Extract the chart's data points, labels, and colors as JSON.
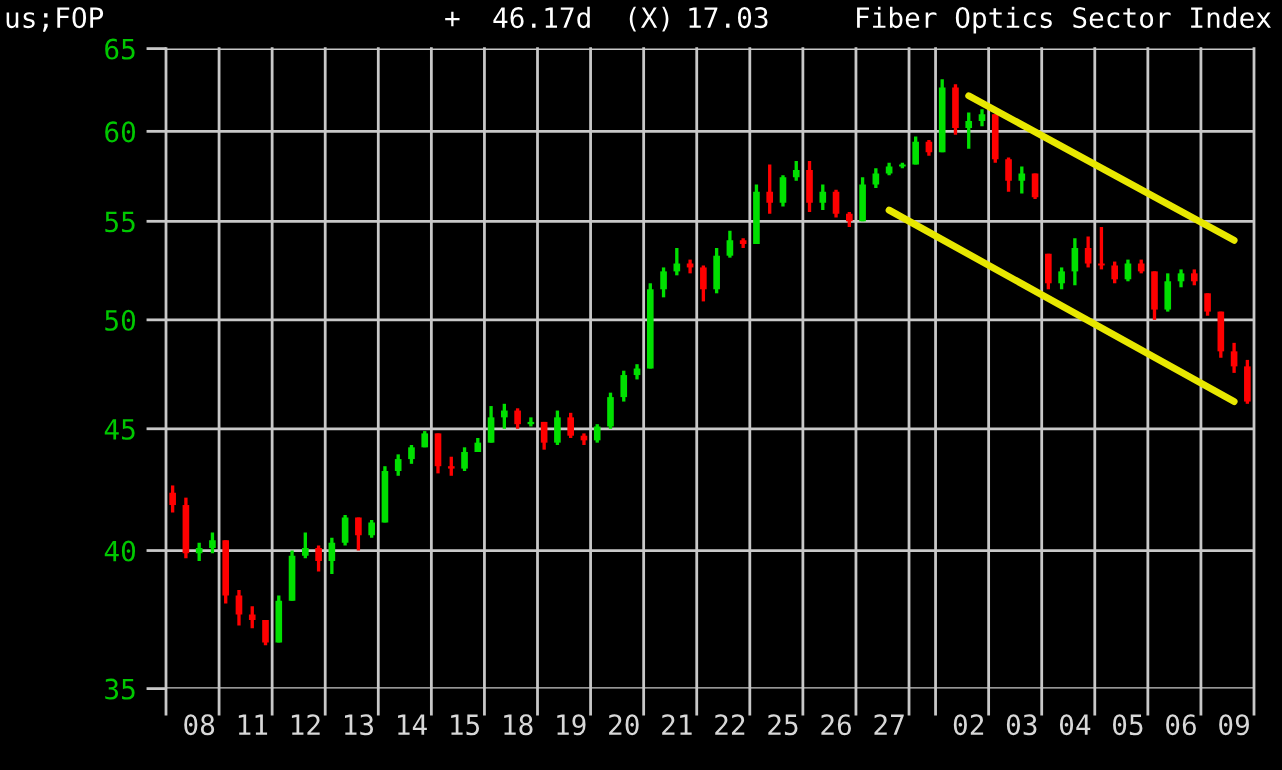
{
  "chart_data": {
    "type": "candlestick",
    "title": "Fiber Optics Sector Index",
    "annotations": [
      "us;FOP",
      "+",
      "46.17d",
      "(X)",
      "17.03"
    ],
    "categories": [
      null,
      null,
      "08",
      null,
      null,
      null,
      "11",
      null,
      null,
      null,
      "12",
      null,
      null,
      null,
      "13",
      null,
      null,
      null,
      "14",
      null,
      null,
      null,
      "15",
      null,
      null,
      null,
      "18",
      null,
      null,
      null,
      "19",
      null,
      null,
      null,
      "20",
      null,
      null,
      null,
      "21",
      null,
      null,
      null,
      "22",
      null,
      null,
      null,
      "25",
      null,
      null,
      null,
      "26",
      null,
      null,
      null,
      "27",
      null,
      null,
      null,
      null,
      null,
      "02",
      null,
      null,
      null,
      "03",
      null,
      null,
      null,
      "04",
      null,
      null,
      null,
      "05",
      null,
      null,
      null,
      "06",
      null,
      null,
      null,
      "09",
      null
    ],
    "ohlc": [
      [
        42.3,
        42.6,
        41.5,
        41.8
      ],
      [
        41.8,
        42.1,
        39.7,
        39.9
      ],
      [
        39.9,
        40.3,
        39.6,
        40.1
      ],
      [
        40.1,
        40.7,
        39.9,
        40.4
      ],
      [
        40.4,
        40.4,
        38.0,
        38.3
      ],
      [
        38.3,
        38.5,
        37.2,
        37.6
      ],
      [
        37.6,
        37.9,
        37.1,
        37.4
      ],
      [
        37.4,
        37.4,
        36.5,
        36.6
      ],
      [
        36.6,
        38.3,
        36.6,
        38.1
      ],
      [
        38.1,
        40.0,
        38.1,
        39.8
      ],
      [
        39.8,
        40.7,
        39.7,
        40.1
      ],
      [
        40.1,
        40.2,
        39.2,
        39.6
      ],
      [
        39.6,
        40.5,
        39.1,
        40.3
      ],
      [
        40.3,
        41.4,
        40.2,
        41.3
      ],
      [
        41.3,
        41.3,
        40.0,
        40.6
      ],
      [
        40.6,
        41.2,
        40.5,
        41.1
      ],
      [
        41.1,
        43.4,
        41.1,
        43.2
      ],
      [
        43.2,
        43.9,
        43.0,
        43.7
      ],
      [
        43.7,
        44.3,
        43.5,
        44.2
      ],
      [
        44.2,
        44.9,
        44.2,
        44.8
      ],
      [
        44.8,
        44.8,
        43.1,
        43.4
      ],
      [
        43.4,
        43.8,
        43.0,
        43.3
      ],
      [
        43.3,
        44.2,
        43.2,
        44.0
      ],
      [
        44.0,
        44.6,
        44.0,
        44.4
      ],
      [
        44.4,
        46.0,
        44.4,
        45.5
      ],
      [
        45.5,
        46.1,
        45.0,
        45.8
      ],
      [
        45.8,
        45.9,
        45.0,
        45.2
      ],
      [
        45.2,
        45.5,
        45.1,
        45.3
      ],
      [
        45.3,
        45.3,
        44.1,
        44.4
      ],
      [
        44.4,
        45.8,
        44.3,
        45.5
      ],
      [
        45.5,
        45.7,
        44.6,
        44.7
      ],
      [
        44.7,
        44.8,
        44.3,
        44.5
      ],
      [
        44.5,
        45.2,
        44.4,
        45.1
      ],
      [
        45.1,
        46.6,
        45.0,
        46.4
      ],
      [
        46.4,
        47.6,
        46.2,
        47.4
      ],
      [
        47.4,
        47.9,
        47.2,
        47.7
      ],
      [
        47.7,
        51.8,
        47.7,
        51.5
      ],
      [
        51.5,
        52.6,
        51.1,
        52.4
      ],
      [
        52.4,
        53.6,
        52.2,
        52.8
      ],
      [
        52.8,
        53.0,
        52.3,
        52.6
      ],
      [
        52.6,
        52.7,
        50.9,
        51.5
      ],
      [
        51.5,
        53.6,
        51.3,
        53.2
      ],
      [
        53.2,
        54.5,
        53.1,
        54.0
      ],
      [
        54.0,
        54.1,
        53.6,
        53.8
      ],
      [
        53.8,
        57.0,
        53.8,
        56.6
      ],
      [
        56.6,
        58.1,
        55.4,
        56.0
      ],
      [
        56.0,
        57.5,
        55.8,
        57.4
      ],
      [
        57.4,
        58.3,
        57.2,
        57.8
      ],
      [
        57.8,
        58.3,
        55.5,
        56.0
      ],
      [
        56.0,
        57.0,
        55.6,
        56.6
      ],
      [
        56.6,
        56.7,
        55.2,
        55.4
      ],
      [
        55.4,
        55.5,
        54.7,
        55.0
      ],
      [
        55.0,
        57.4,
        55.0,
        57.0
      ],
      [
        57.0,
        57.9,
        56.8,
        57.6
      ],
      [
        57.6,
        58.2,
        57.5,
        58.0
      ],
      [
        58.0,
        58.2,
        57.9,
        58.1
      ],
      [
        58.1,
        59.7,
        58.1,
        59.4
      ],
      [
        59.4,
        59.5,
        58.6,
        58.8
      ],
      [
        58.8,
        63.1,
        58.8,
        62.6
      ],
      [
        62.6,
        62.8,
        59.8,
        60.2
      ],
      [
        60.2,
        61.1,
        59.0,
        60.6
      ],
      [
        60.6,
        61.3,
        60.3,
        61.0
      ],
      [
        61.0,
        61.0,
        58.2,
        58.4
      ],
      [
        58.4,
        58.5,
        56.6,
        57.2
      ],
      [
        57.2,
        58.0,
        56.5,
        57.6
      ],
      [
        57.6,
        57.6,
        56.2,
        56.3
      ],
      [
        53.3,
        53.3,
        51.5,
        51.8
      ],
      [
        51.8,
        52.6,
        51.5,
        52.4
      ],
      [
        52.4,
        54.1,
        51.7,
        53.6
      ],
      [
        53.6,
        54.2,
        52.6,
        52.8
      ],
      [
        52.8,
        54.7,
        52.5,
        52.7
      ],
      [
        52.7,
        52.9,
        51.8,
        52.0
      ],
      [
        52.0,
        53.0,
        51.9,
        52.8
      ],
      [
        52.8,
        53.0,
        52.3,
        52.4
      ],
      [
        52.4,
        52.4,
        50.0,
        50.5
      ],
      [
        50.5,
        52.3,
        50.4,
        51.9
      ],
      [
        51.9,
        52.5,
        51.6,
        52.3
      ],
      [
        52.3,
        52.5,
        51.7,
        51.9
      ],
      [
        51.3,
        51.3,
        50.2,
        50.4
      ],
      [
        50.4,
        50.4,
        48.2,
        48.5
      ],
      [
        48.5,
        48.9,
        47.5,
        47.8
      ],
      [
        47.8,
        48.1,
        46.1,
        46.2
      ]
    ],
    "series": [
      {
        "type": "line",
        "color": "#e8e800",
        "x": [
          "02",
          "09"
        ],
        "values": [
          62.1,
          54.0
        ]
      },
      {
        "type": "line",
        "color": "#e8e800",
        "x": [
          "27",
          "09"
        ],
        "values": [
          55.6,
          46.2
        ]
      }
    ],
    "log": true,
    "ylim": [
      35,
      65
    ],
    "yticks": [
      35,
      40,
      45,
      50,
      55,
      60,
      65
    ],
    "grid": true
  }
}
